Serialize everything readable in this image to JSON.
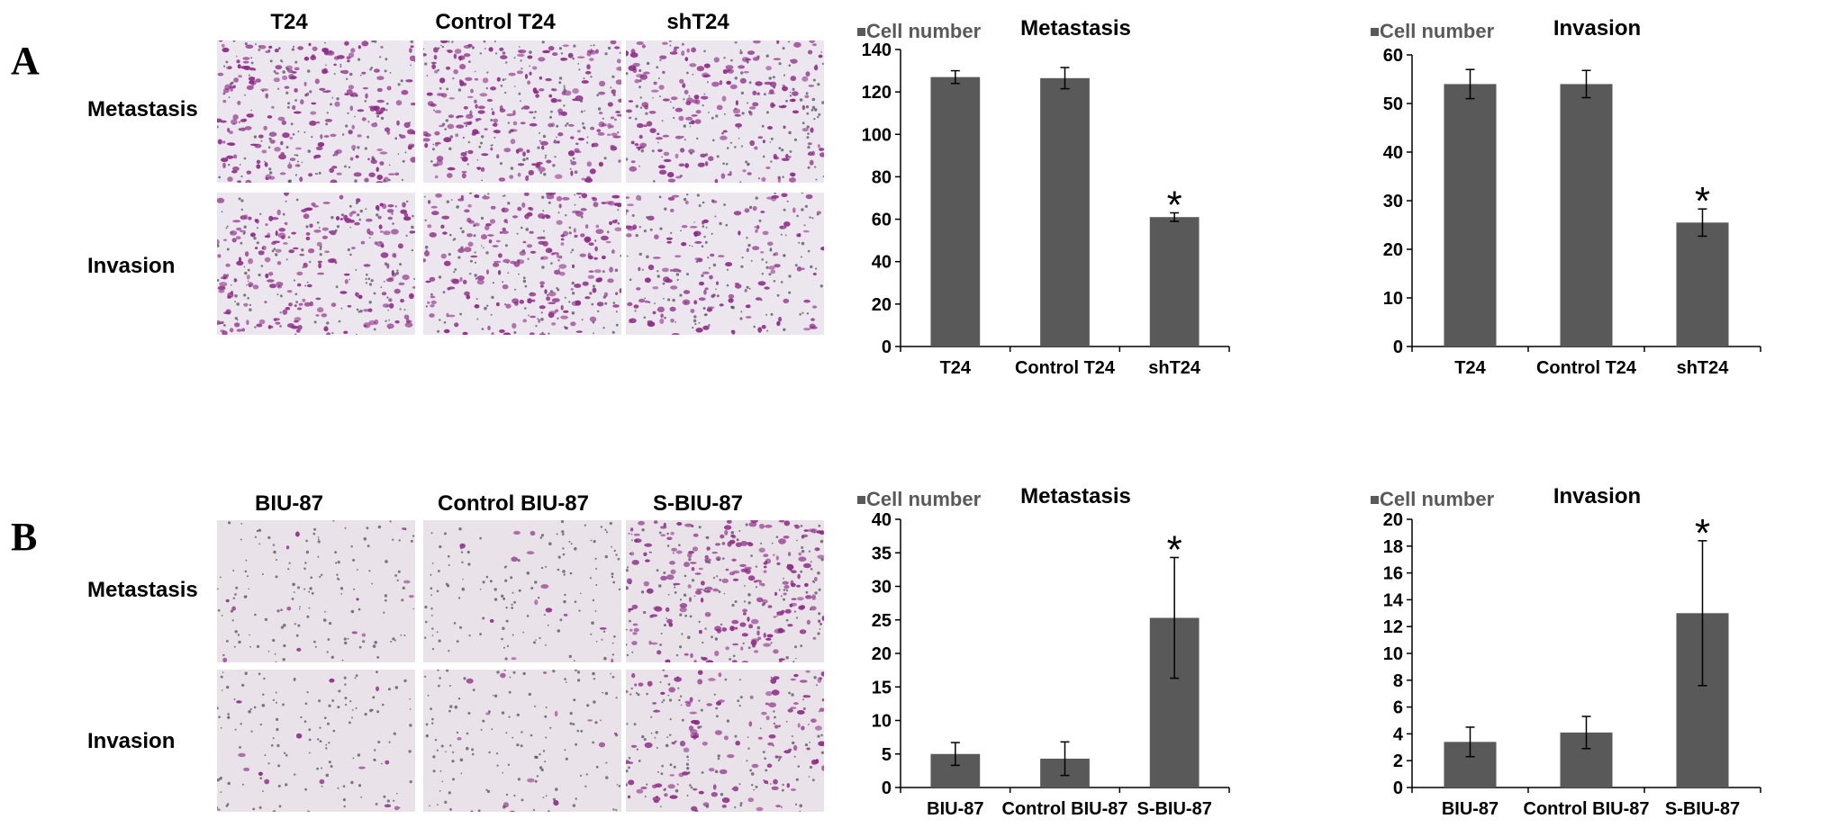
{
  "panels": [
    {
      "letter": "A",
      "columns": [
        "T24",
        "Control T24",
        "shT24"
      ],
      "rows": [
        "Metastasis",
        "Invasion"
      ],
      "stain_levels": [
        [
          0.85,
          0.85,
          0.7
        ],
        [
          0.8,
          0.8,
          0.5
        ]
      ]
    },
    {
      "letter": "B",
      "columns": [
        "BIU-87",
        "Control BIU-87",
        "S-BIU-87"
      ],
      "rows": [
        "Metastasis",
        "Invasion"
      ],
      "stain_levels": [
        [
          0.05,
          0.05,
          0.8
        ],
        [
          0.05,
          0.05,
          0.45
        ]
      ]
    }
  ],
  "chart_data": [
    {
      "type": "bar",
      "title": "Metastasis",
      "legend": "Cell number",
      "categories": [
        "T24",
        "Control T24",
        "shT24"
      ],
      "values": [
        127,
        126.5,
        61
      ],
      "errors": [
        3,
        5,
        2
      ],
      "significance": [
        "",
        "",
        "*"
      ],
      "ylim": [
        0,
        140
      ],
      "yticks": [
        0,
        20,
        40,
        60,
        80,
        100,
        120,
        140
      ],
      "bar_color": "#595959"
    },
    {
      "type": "bar",
      "title": "Invasion",
      "legend": "Cell number",
      "categories": [
        "T24",
        "Control T24",
        "shT24"
      ],
      "values": [
        54,
        54,
        25.5
      ],
      "errors": [
        3,
        2.8,
        2.8
      ],
      "significance": [
        "",
        "",
        "*"
      ],
      "ylim": [
        0,
        60
      ],
      "yticks": [
        0,
        10,
        20,
        30,
        40,
        50,
        60
      ],
      "bar_color": "#595959"
    },
    {
      "type": "bar",
      "title": "Metastasis",
      "legend": "Cell number",
      "categories": [
        "BIU-87",
        "Control BIU-87",
        "S-BIU-87"
      ],
      "values": [
        5,
        4.3,
        25.3
      ],
      "errors": [
        1.7,
        2.5,
        9
      ],
      "significance": [
        "",
        "",
        "*"
      ],
      "ylim": [
        0,
        40
      ],
      "yticks": [
        0,
        5,
        10,
        15,
        20,
        25,
        30,
        35,
        40
      ],
      "bar_color": "#595959"
    },
    {
      "type": "bar",
      "title": "Invasion",
      "legend": "Cell number",
      "categories": [
        "BIU-87",
        "Control BIU-87",
        "S-BIU-87"
      ],
      "values": [
        3.4,
        4.1,
        13
      ],
      "errors": [
        1.1,
        1.2,
        5.4
      ],
      "significance": [
        "",
        "",
        "*"
      ],
      "ylim": [
        0,
        20
      ],
      "yticks": [
        0,
        2,
        4,
        6,
        8,
        10,
        12,
        14,
        16,
        18,
        20
      ],
      "bar_color": "#595959"
    }
  ]
}
